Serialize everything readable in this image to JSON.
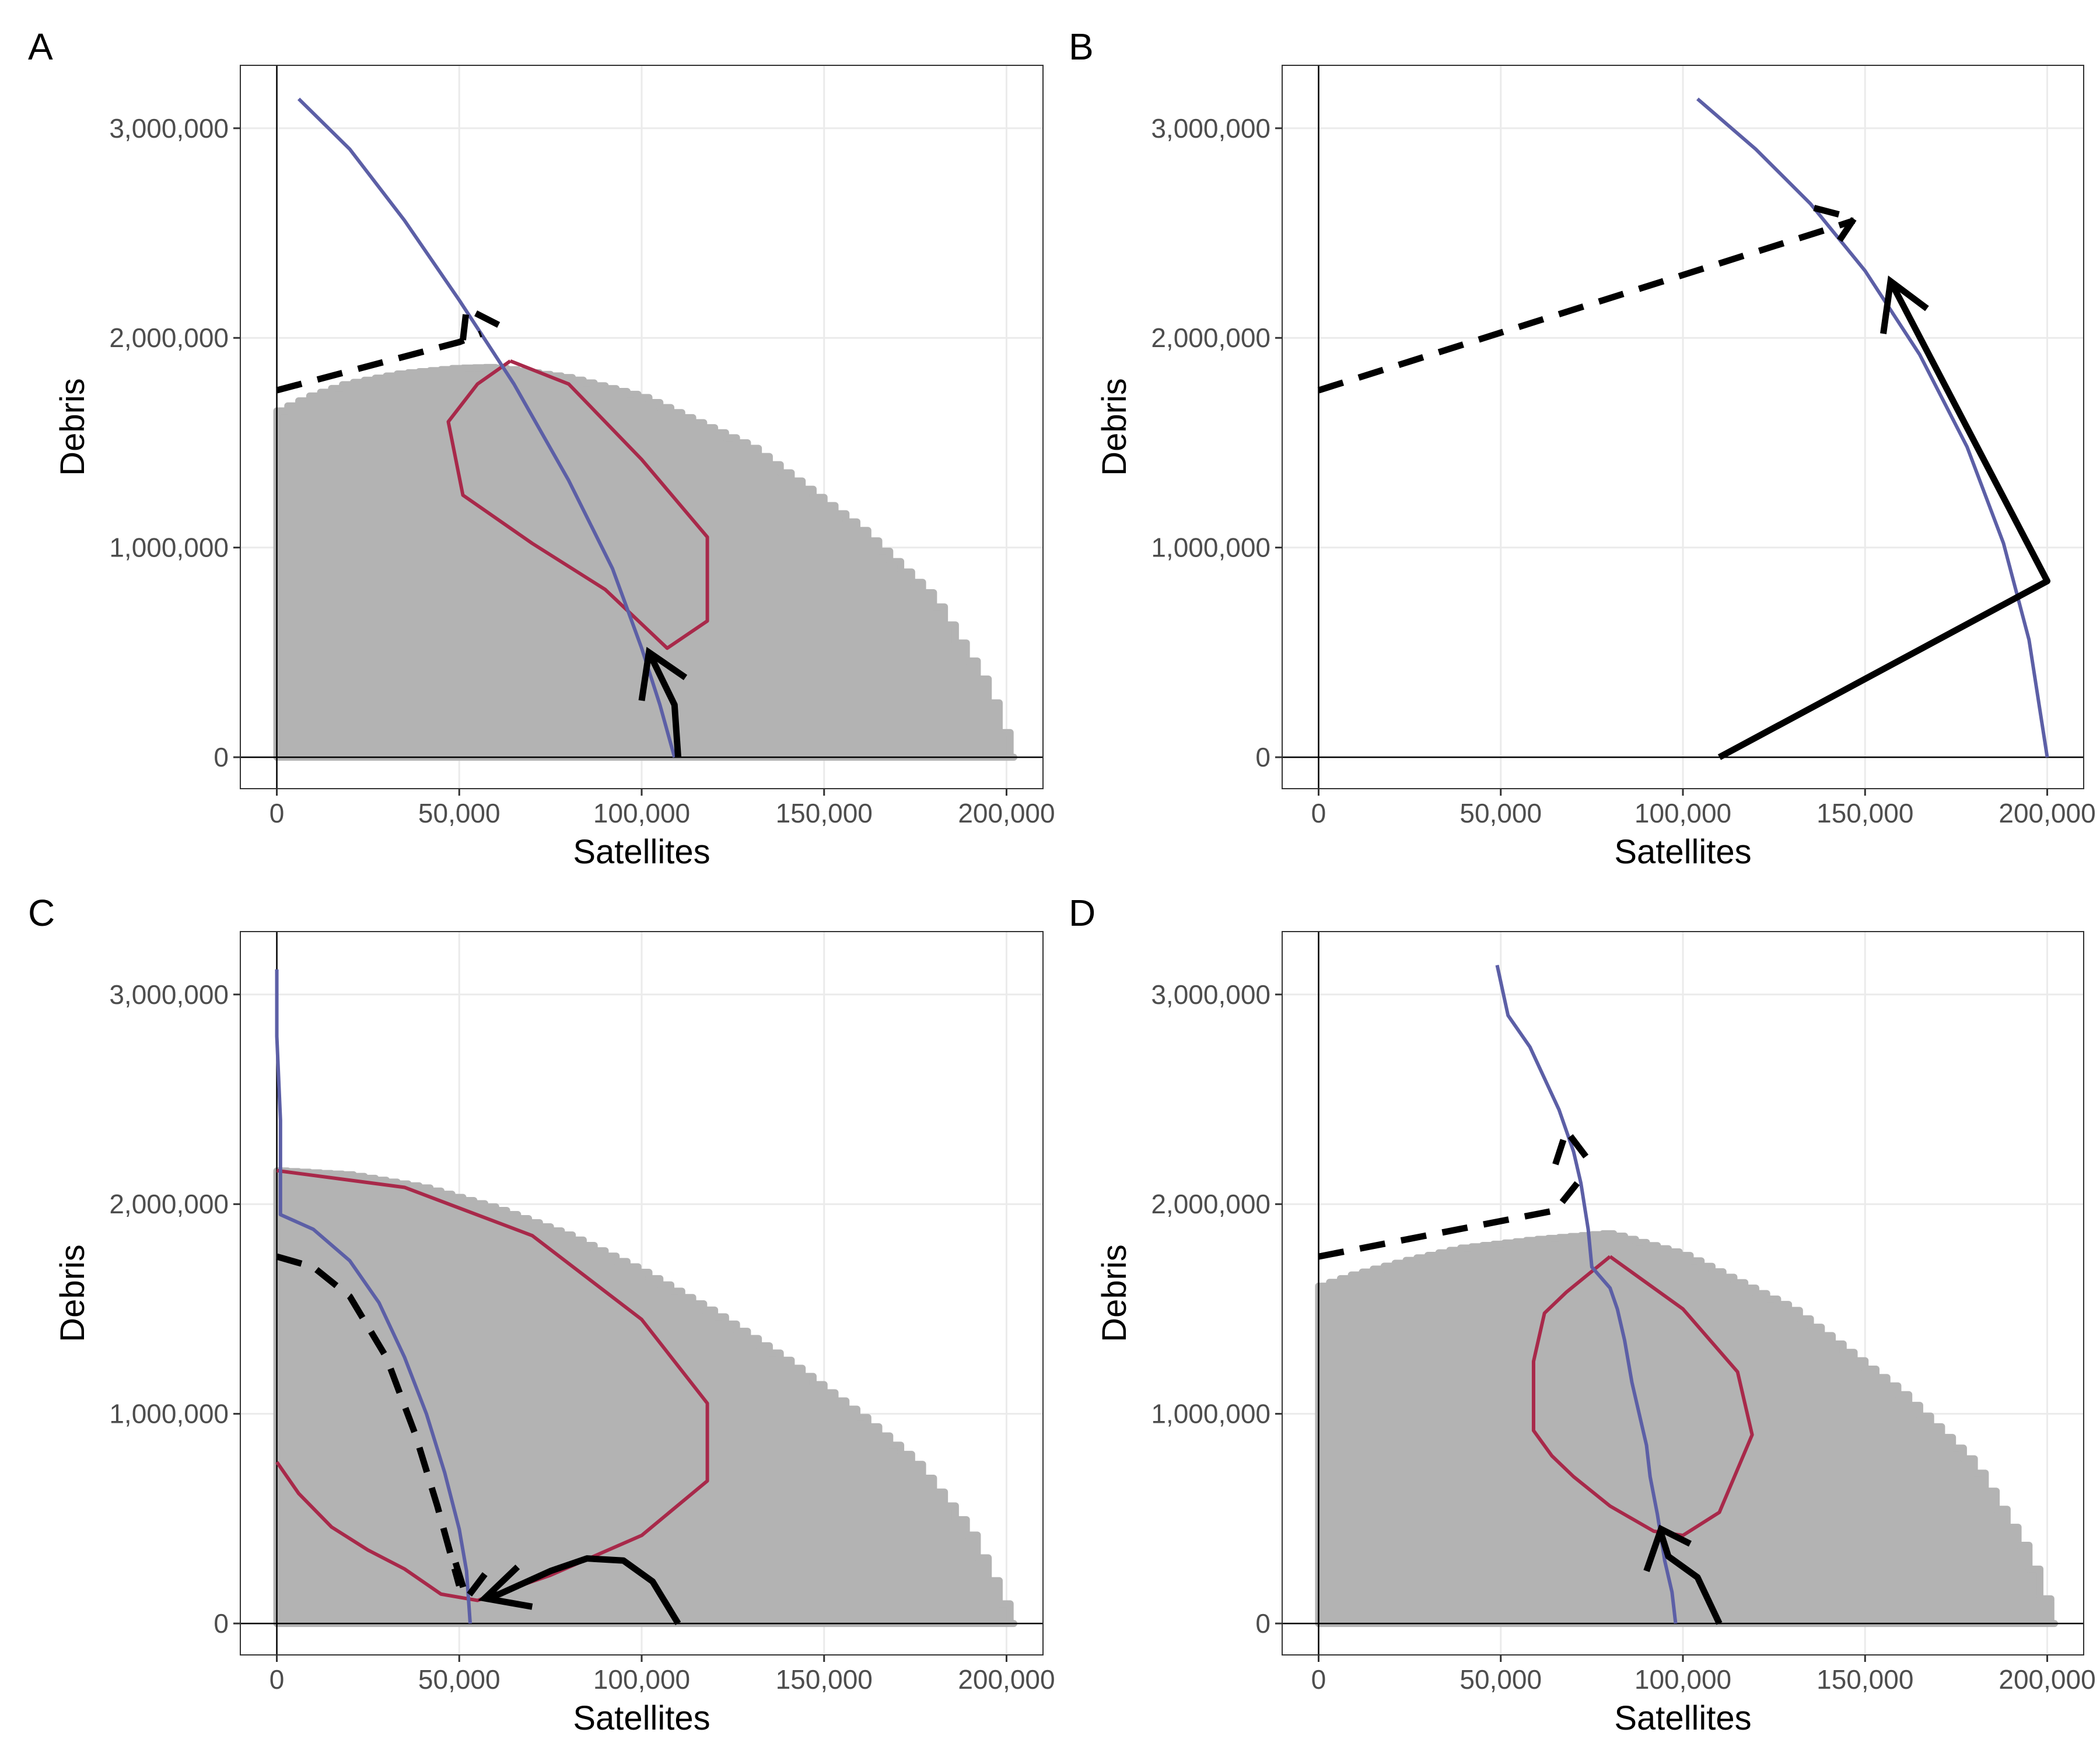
{
  "figure": {
    "panels_order": [
      "A",
      "B",
      "C",
      "D"
    ]
  },
  "colors": {
    "region": "#b3b3b3",
    "blue_curve": "#5c5fa6",
    "red_curve": "#a8294a",
    "path": "#000000",
    "grid": "#ebebeb",
    "panel_border": "#333333"
  },
  "chart_data": [
    {
      "panel": "A",
      "type": "line",
      "xlabel": "Satellites",
      "ylabel": "Debris",
      "xlim": [
        -10000,
        210000
      ],
      "ylim": [
        -150000,
        3300000
      ],
      "x_ticks": [
        0,
        50000,
        100000,
        150000,
        200000
      ],
      "x_tick_labels": [
        "0",
        "50,000",
        "100,000",
        "150,000",
        "200,000"
      ],
      "y_ticks": [
        0,
        1000000,
        2000000,
        3000000
      ],
      "y_tick_labels": [
        "0",
        "1,000,000",
        "2,000,000",
        "3,000,000"
      ],
      "region": {
        "name": "grey feasible region",
        "profile": [
          [
            0,
            1640000
          ],
          [
            10000,
            1720000
          ],
          [
            20000,
            1780000
          ],
          [
            35000,
            1830000
          ],
          [
            50000,
            1855000
          ],
          [
            60000,
            1860000
          ],
          [
            80000,
            1810000
          ],
          [
            100000,
            1720000
          ],
          [
            130000,
            1480000
          ],
          [
            160000,
            1090000
          ],
          [
            180000,
            760000
          ],
          [
            195000,
            330000
          ],
          [
            202000,
            0
          ]
        ]
      },
      "blue_curve": [
        [
          6000,
          3140000
        ],
        [
          20000,
          2900000
        ],
        [
          35000,
          2560000
        ],
        [
          50000,
          2180000
        ],
        [
          65000,
          1780000
        ],
        [
          80000,
          1320000
        ],
        [
          92000,
          900000
        ],
        [
          100000,
          520000
        ],
        [
          105000,
          250000
        ],
        [
          109000,
          0
        ]
      ],
      "red_curve": [
        [
          64000,
          1890000
        ],
        [
          55000,
          1780000
        ],
        [
          47000,
          1600000
        ],
        [
          51000,
          1250000
        ],
        [
          70000,
          1020000
        ],
        [
          90000,
          800000
        ],
        [
          107000,
          520000
        ],
        [
          118000,
          650000
        ],
        [
          118000,
          1050000
        ],
        [
          100000,
          1420000
        ],
        [
          80000,
          1780000
        ],
        [
          64000,
          1890000
        ]
      ],
      "solid_path": [
        [
          110000,
          0
        ],
        [
          109000,
          250000
        ],
        [
          102000,
          500000
        ]
      ],
      "solid_arrowhead": {
        "tip": [
          102000,
          500000
        ],
        "heads": [
          [
            100000,
            270000
          ],
          [
            112000,
            380000
          ]
        ]
      },
      "dashed_path": [
        [
          0,
          1750000
        ],
        [
          50000,
          1980000
        ],
        [
          56000,
          2020000
        ]
      ],
      "dashed_arrowhead": {
        "tip": [
          52000,
          2140000
        ],
        "heads": [
          [
            51000,
            1990000
          ],
          [
            61000,
            2060000
          ]
        ]
      }
    },
    {
      "panel": "B",
      "type": "line",
      "xlabel": "Satellites",
      "ylabel": "Debris",
      "xlim": [
        -10000,
        210000
      ],
      "ylim": [
        -150000,
        3300000
      ],
      "x_ticks": [
        0,
        50000,
        100000,
        150000,
        200000
      ],
      "x_tick_labels": [
        "0",
        "50,000",
        "100,000",
        "150,000",
        "200,000"
      ],
      "y_ticks": [
        0,
        1000000,
        2000000,
        3000000
      ],
      "y_tick_labels": [
        "0",
        "1,000,000",
        "2,000,000",
        "3,000,000"
      ],
      "region": null,
      "blue_curve": [
        [
          104000,
          3140000
        ],
        [
          120000,
          2900000
        ],
        [
          135000,
          2640000
        ],
        [
          150000,
          2320000
        ],
        [
          165000,
          1920000
        ],
        [
          178000,
          1480000
        ],
        [
          188000,
          1020000
        ],
        [
          195000,
          560000
        ],
        [
          200000,
          0
        ]
      ],
      "red_curve": null,
      "solid_path": [
        [
          110000,
          0
        ],
        [
          200000,
          840000
        ],
        [
          157000,
          2270000
        ]
      ],
      "solid_arrowhead": {
        "tip": [
          157000,
          2270000
        ],
        "heads": [
          [
            155000,
            2020000
          ],
          [
            167000,
            2140000
          ]
        ]
      },
      "dashed_path": [
        [
          0,
          1750000
        ],
        [
          140000,
          2520000
        ],
        [
          147000,
          2560000
        ]
      ],
      "dashed_arrowhead": {
        "tip": [
          147000,
          2570000
        ],
        "heads": [
          [
            136000,
            2620000
          ],
          [
            142000,
            2440000
          ]
        ]
      }
    },
    {
      "panel": "C",
      "type": "line",
      "xlabel": "Satellites",
      "ylabel": "Debris",
      "xlim": [
        -10000,
        210000
      ],
      "ylim": [
        -150000,
        3300000
      ],
      "x_ticks": [
        0,
        50000,
        100000,
        150000,
        200000
      ],
      "x_tick_labels": [
        "0",
        "50,000",
        "100,000",
        "150,000",
        "200,000"
      ],
      "y_ticks": [
        0,
        1000000,
        2000000,
        3000000
      ],
      "y_tick_labels": [
        "0",
        "1,000,000",
        "2,000,000",
        "3,000,000"
      ],
      "region": {
        "name": "grey feasible region",
        "profile": [
          [
            0,
            2160000
          ],
          [
            20000,
            2140000
          ],
          [
            40000,
            2080000
          ],
          [
            60000,
            1980000
          ],
          [
            80000,
            1850000
          ],
          [
            100000,
            1680000
          ],
          [
            120000,
            1480000
          ],
          [
            140000,
            1250000
          ],
          [
            160000,
            990000
          ],
          [
            175000,
            770000
          ],
          [
            190000,
            440000
          ],
          [
            198000,
            150000
          ],
          [
            202000,
            0
          ]
        ]
      },
      "blue_curve": [
        [
          0,
          3120000
        ],
        [
          0,
          2800000
        ],
        [
          1000,
          2400000
        ],
        [
          1000,
          1950000
        ],
        [
          10000,
          1880000
        ],
        [
          20000,
          1730000
        ],
        [
          28000,
          1530000
        ],
        [
          35000,
          1270000
        ],
        [
          41000,
          1000000
        ],
        [
          46000,
          720000
        ],
        [
          50000,
          450000
        ],
        [
          52000,
          250000
        ],
        [
          53000,
          0
        ]
      ],
      "red_curve": [
        [
          0,
          770000
        ],
        [
          6000,
          620000
        ],
        [
          15000,
          460000
        ],
        [
          25000,
          350000
        ],
        [
          35000,
          260000
        ],
        [
          45000,
          140000
        ],
        [
          55000,
          110000
        ],
        [
          75000,
          230000
        ],
        [
          100000,
          420000
        ],
        [
          118000,
          680000
        ],
        [
          118000,
          1050000
        ],
        [
          100000,
          1450000
        ],
        [
          70000,
          1850000
        ],
        [
          35000,
          2080000
        ],
        [
          0,
          2160000
        ]
      ],
      "solid_path": [
        [
          110000,
          0
        ],
        [
          103000,
          200000
        ],
        [
          95000,
          300000
        ],
        [
          85000,
          310000
        ],
        [
          75000,
          250000
        ],
        [
          61000,
          140000
        ],
        [
          57000,
          120000
        ]
      ],
      "solid_arrowhead": {
        "tip": [
          57000,
          120000
        ],
        "heads": [
          [
            66000,
            270000
          ],
          [
            70000,
            80000
          ]
        ]
      },
      "dashed_path": [
        [
          0,
          1750000
        ],
        [
          10000,
          1700000
        ],
        [
          20000,
          1560000
        ],
        [
          30000,
          1270000
        ],
        [
          38000,
          900000
        ],
        [
          44000,
          560000
        ],
        [
          50000,
          180000
        ]
      ],
      "dashed_arrowhead": {
        "tip": [
          52000,
          120000
        ],
        "heads": [
          [
            49000,
            290000
          ],
          [
            59000,
            280000
          ]
        ]
      }
    },
    {
      "panel": "D",
      "type": "line",
      "xlabel": "Satellites",
      "ylabel": "Debris",
      "xlim": [
        -10000,
        210000
      ],
      "ylim": [
        -150000,
        3300000
      ],
      "x_ticks": [
        0,
        50000,
        100000,
        150000,
        200000
      ],
      "x_tick_labels": [
        "0",
        "50,000",
        "100,000",
        "150,000",
        "200,000"
      ],
      "y_ticks": [
        0,
        1000000,
        2000000,
        3000000
      ],
      "y_tick_labels": [
        "0",
        "1,000,000",
        "2,000,000",
        "3,000,000"
      ],
      "region": {
        "name": "grey feasible region",
        "profile": [
          [
            0,
            1600000
          ],
          [
            10000,
            1660000
          ],
          [
            25000,
            1730000
          ],
          [
            40000,
            1790000
          ],
          [
            60000,
            1830000
          ],
          [
            80000,
            1860000
          ],
          [
            100000,
            1760000
          ],
          [
            130000,
            1500000
          ],
          [
            160000,
            1100000
          ],
          [
            180000,
            760000
          ],
          [
            195000,
            330000
          ],
          [
            202000,
            0
          ]
        ]
      },
      "blue_curve": [
        [
          49000,
          3140000
        ],
        [
          52000,
          2900000
        ],
        [
          58000,
          2750000
        ],
        [
          62000,
          2600000
        ],
        [
          66000,
          2450000
        ],
        [
          70000,
          2250000
        ],
        [
          72000,
          2100000
        ],
        [
          74000,
          1880000
        ],
        [
          75000,
          1700000
        ],
        [
          80000,
          1600000
        ],
        [
          82000,
          1500000
        ],
        [
          84000,
          1350000
        ],
        [
          86000,
          1150000
        ],
        [
          88000,
          1000000
        ],
        [
          90000,
          850000
        ],
        [
          91000,
          700000
        ],
        [
          93000,
          520000
        ],
        [
          95000,
          300000
        ],
        [
          97000,
          150000
        ],
        [
          98000,
          0
        ]
      ],
      "red_curve": [
        [
          80000,
          1750000
        ],
        [
          68000,
          1580000
        ],
        [
          62000,
          1480000
        ],
        [
          59000,
          1250000
        ],
        [
          59000,
          920000
        ],
        [
          64000,
          800000
        ],
        [
          70000,
          700000
        ],
        [
          80000,
          560000
        ],
        [
          92000,
          440000
        ],
        [
          100000,
          420000
        ],
        [
          110000,
          530000
        ],
        [
          119000,
          900000
        ],
        [
          115000,
          1200000
        ],
        [
          100000,
          1500000
        ],
        [
          80000,
          1750000
        ]
      ],
      "solid_path": [
        [
          110000,
          0
        ],
        [
          104000,
          220000
        ],
        [
          96000,
          320000
        ],
        [
          94000,
          430000
        ]
      ],
      "solid_arrowhead": {
        "tip": [
          94000,
          450000
        ],
        "heads": [
          [
            90000,
            250000
          ],
          [
            102000,
            380000
          ]
        ]
      },
      "dashed_path": [
        [
          0,
          1750000
        ],
        [
          65000,
          1970000
        ],
        [
          71000,
          2100000
        ]
      ],
      "dashed_arrowhead": {
        "tip": [
          68000,
          2350000
        ],
        "heads": [
          [
            65000,
            2190000
          ],
          [
            75000,
            2190000
          ]
        ]
      }
    }
  ]
}
